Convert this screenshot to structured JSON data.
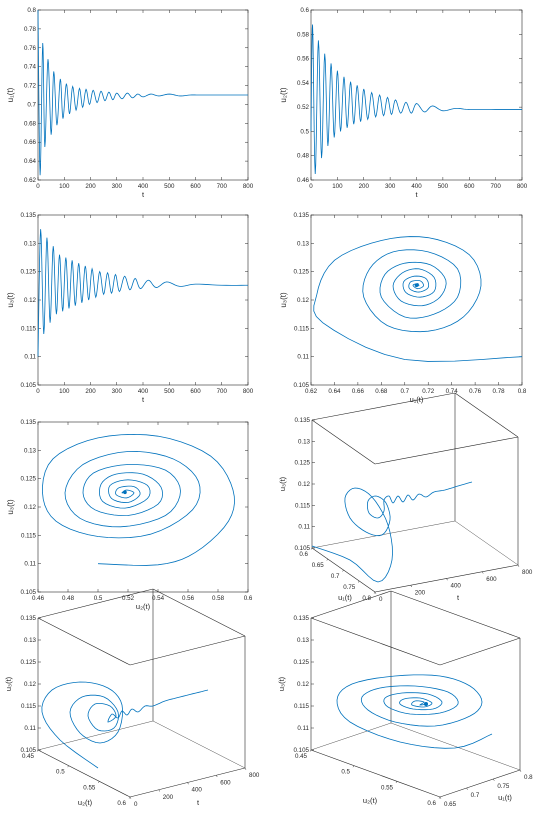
{
  "colors": {
    "line": "#0072BD",
    "axis": "#262626",
    "box": "#262626",
    "grid3d": "#d9d9d9"
  },
  "chart_data": [
    {
      "type": "line",
      "xlabel": "t",
      "ylabel": "u₁(t)",
      "xlim": [
        0,
        800
      ],
      "ylim": [
        0.62,
        0.8
      ],
      "xticks": [
        "0",
        "100",
        "200",
        "300",
        "400",
        "500",
        "600",
        "700",
        "800"
      ],
      "yticks": [
        "0.62",
        "0.64",
        "0.66",
        "0.68",
        "0.7",
        "0.72",
        "0.74",
        "0.76",
        "0.78",
        "0.8"
      ],
      "series": [
        {
          "x": [
            0,
            8,
            18,
            26,
            38,
            50,
            60,
            72,
            85,
            95,
            108,
            120,
            132,
            145,
            158,
            170,
            183,
            196,
            210,
            225,
            240,
            255,
            270,
            285,
            300,
            320,
            340,
            360,
            380,
            400,
            430,
            460,
            500,
            540,
            580,
            620,
            700,
            800
          ],
          "values": [
            0.8,
            0.625,
            0.765,
            0.655,
            0.748,
            0.668,
            0.735,
            0.678,
            0.727,
            0.685,
            0.722,
            0.69,
            0.719,
            0.694,
            0.717,
            0.697,
            0.716,
            0.7,
            0.715,
            0.702,
            0.714,
            0.704,
            0.713,
            0.705,
            0.712,
            0.706,
            0.712,
            0.707,
            0.711,
            0.708,
            0.711,
            0.709,
            0.711,
            0.709,
            0.71,
            0.71,
            0.71,
            0.71
          ]
        }
      ]
    },
    {
      "type": "line",
      "xlabel": "t",
      "ylabel": "u₂(t)",
      "xlim": [
        0,
        800
      ],
      "ylim": [
        0.46,
        0.6
      ],
      "xticks": [
        "0",
        "100",
        "200",
        "300",
        "400",
        "500",
        "600",
        "700",
        "800"
      ],
      "yticks": [
        "0.46",
        "0.48",
        "0.5",
        "0.52",
        "0.54",
        "0.56",
        "0.58",
        "0.6"
      ],
      "series": [
        {
          "x": [
            0,
            6,
            16,
            28,
            40,
            52,
            64,
            76,
            88,
            100,
            112,
            125,
            137,
            150,
            162,
            175,
            188,
            200,
            215,
            230,
            245,
            260,
            275,
            290,
            305,
            320,
            340,
            360,
            380,
            400,
            430,
            460,
            500,
            550,
            600,
            700,
            800
          ],
          "values": [
            0.5,
            0.588,
            0.465,
            0.575,
            0.478,
            0.564,
            0.488,
            0.556,
            0.495,
            0.55,
            0.5,
            0.545,
            0.503,
            0.541,
            0.506,
            0.538,
            0.508,
            0.535,
            0.51,
            0.532,
            0.512,
            0.53,
            0.513,
            0.528,
            0.514,
            0.526,
            0.515,
            0.524,
            0.515,
            0.523,
            0.516,
            0.521,
            0.517,
            0.519,
            0.518,
            0.518,
            0.518
          ]
        }
      ]
    },
    {
      "type": "line",
      "xlabel": "t",
      "ylabel": "u₃(t)",
      "xlim": [
        0,
        800
      ],
      "ylim": [
        0.105,
        0.135
      ],
      "xticks": [
        "0",
        "100",
        "200",
        "300",
        "400",
        "500",
        "600",
        "700",
        "800"
      ],
      "yticks": [
        "0.105",
        "0.11",
        "0.115",
        "0.12",
        "0.125",
        "0.13",
        "0.135"
      ],
      "series": [
        {
          "x": [
            0,
            10,
            22,
            34,
            46,
            58,
            70,
            82,
            94,
            106,
            118,
            130,
            142,
            155,
            167,
            180,
            193,
            206,
            220,
            235,
            250,
            265,
            280,
            295,
            310,
            330,
            350,
            370,
            390,
            420,
            450,
            490,
            540,
            600,
            700,
            800
          ],
          "values": [
            0.11,
            0.1325,
            0.114,
            0.131,
            0.116,
            0.1295,
            0.1175,
            0.128,
            0.118,
            0.1275,
            0.1185,
            0.127,
            0.119,
            0.1265,
            0.1195,
            0.126,
            0.12,
            0.1255,
            0.1205,
            0.125,
            0.121,
            0.1248,
            0.1212,
            0.1245,
            0.1215,
            0.1242,
            0.1218,
            0.1238,
            0.122,
            0.1235,
            0.1222,
            0.1232,
            0.1224,
            0.1228,
            0.1226,
            0.1226
          ]
        }
      ]
    },
    {
      "type": "line",
      "xlabel": "u₁(t)",
      "ylabel": "u₃(t)",
      "xlim": [
        0.62,
        0.8
      ],
      "ylim": [
        0.105,
        0.135
      ],
      "xticks": [
        "0.62",
        "0.64",
        "0.66",
        "0.68",
        "0.7",
        "0.72",
        "0.74",
        "0.76",
        "0.78",
        "0.8"
      ],
      "yticks": [
        "0.105",
        "0.11",
        "0.115",
        "0.12",
        "0.125",
        "0.13",
        "0.135"
      ],
      "spiral": {
        "center": [
          0.71,
          0.1226
        ],
        "start": [
          0.8,
          0.11
        ],
        "points": [
          [
            0.8,
            0.11
          ],
          [
            0.7,
            0.1095
          ],
          [
            0.63,
            0.116
          ],
          [
            0.625,
            0.121
          ],
          [
            0.64,
            0.127
          ],
          [
            0.68,
            0.1305
          ],
          [
            0.72,
            0.131
          ],
          [
            0.755,
            0.128
          ],
          [
            0.765,
            0.1225
          ],
          [
            0.75,
            0.117
          ],
          [
            0.72,
            0.1145
          ],
          [
            0.685,
            0.1155
          ],
          [
            0.665,
            0.1205
          ],
          [
            0.67,
            0.1255
          ],
          [
            0.69,
            0.1285
          ],
          [
            0.72,
            0.1285
          ],
          [
            0.745,
            0.1255
          ],
          [
            0.745,
            0.1205
          ],
          [
            0.725,
            0.1175
          ],
          [
            0.7,
            0.117
          ],
          [
            0.68,
            0.1205
          ],
          [
            0.683,
            0.1245
          ],
          [
            0.7,
            0.1265
          ],
          [
            0.722,
            0.1262
          ],
          [
            0.735,
            0.1235
          ],
          [
            0.73,
            0.1205
          ],
          [
            0.715,
            0.119
          ],
          [
            0.697,
            0.1198
          ],
          [
            0.69,
            0.1225
          ],
          [
            0.698,
            0.1248
          ],
          [
            0.712,
            0.1255
          ],
          [
            0.725,
            0.124
          ],
          [
            0.725,
            0.1215
          ],
          [
            0.713,
            0.1205
          ],
          [
            0.701,
            0.1213
          ],
          [
            0.699,
            0.1232
          ],
          [
            0.708,
            0.1242
          ],
          [
            0.718,
            0.1238
          ],
          [
            0.72,
            0.1222
          ],
          [
            0.712,
            0.1214
          ],
          [
            0.704,
            0.122
          ],
          [
            0.705,
            0.1232
          ],
          [
            0.713,
            0.1234
          ],
          [
            0.716,
            0.1225
          ],
          [
            0.711,
            0.122
          ],
          [
            0.707,
            0.1226
          ],
          [
            0.711,
            0.1229
          ],
          [
            0.712,
            0.1225
          ],
          [
            0.71,
            0.1226
          ]
        ]
      }
    },
    {
      "type": "line",
      "xlabel": "u₂(t)",
      "ylabel": "u₃(t)",
      "xlim": [
        0.46,
        0.6
      ],
      "ylim": [
        0.105,
        0.135
      ],
      "xticks": [
        "0.46",
        "0.48",
        "0.5",
        "0.52",
        "0.54",
        "0.56",
        "0.58",
        "0.6"
      ],
      "yticks": [
        "0.105",
        "0.11",
        "0.115",
        "0.12",
        "0.125",
        "0.13",
        "0.135"
      ],
      "spiral": {
        "points": [
          [
            0.5,
            0.11
          ],
          [
            0.54,
            0.1098
          ],
          [
            0.565,
            0.112
          ],
          [
            0.587,
            0.1175
          ],
          [
            0.59,
            0.123
          ],
          [
            0.575,
            0.129
          ],
          [
            0.54,
            0.1325
          ],
          [
            0.5,
            0.1322
          ],
          [
            0.47,
            0.1285
          ],
          [
            0.463,
            0.1225
          ],
          [
            0.472,
            0.1175
          ],
          [
            0.5,
            0.1148
          ],
          [
            0.535,
            0.1152
          ],
          [
            0.563,
            0.1195
          ],
          [
            0.567,
            0.1245
          ],
          [
            0.55,
            0.1285
          ],
          [
            0.52,
            0.1298
          ],
          [
            0.49,
            0.1275
          ],
          [
            0.478,
            0.1225
          ],
          [
            0.488,
            0.118
          ],
          [
            0.515,
            0.1165
          ],
          [
            0.545,
            0.1185
          ],
          [
            0.555,
            0.1228
          ],
          [
            0.545,
            0.1265
          ],
          [
            0.52,
            0.1275
          ],
          [
            0.497,
            0.126
          ],
          [
            0.49,
            0.1225
          ],
          [
            0.498,
            0.1195
          ],
          [
            0.52,
            0.1185
          ],
          [
            0.54,
            0.1205
          ],
          [
            0.542,
            0.1235
          ],
          [
            0.53,
            0.1258
          ],
          [
            0.512,
            0.1258
          ],
          [
            0.502,
            0.124
          ],
          [
            0.503,
            0.121
          ],
          [
            0.518,
            0.1198
          ],
          [
            0.533,
            0.1215
          ],
          [
            0.533,
            0.1238
          ],
          [
            0.52,
            0.1248
          ],
          [
            0.508,
            0.1238
          ],
          [
            0.509,
            0.1215
          ],
          [
            0.52,
            0.1208
          ],
          [
            0.528,
            0.1222
          ],
          [
            0.524,
            0.1236
          ],
          [
            0.514,
            0.1234
          ],
          [
            0.512,
            0.1222
          ],
          [
            0.519,
            0.1216
          ],
          [
            0.524,
            0.1225
          ],
          [
            0.519,
            0.123
          ],
          [
            0.516,
            0.1225
          ],
          [
            0.518,
            0.1226
          ]
        ]
      }
    },
    {
      "type": "line3d",
      "axes": [
        "u₁(t)",
        "t",
        "u₃(t)"
      ],
      "xticks": [
        "0.6",
        "0.65",
        "0.7",
        "0.75",
        "0.8"
      ],
      "tticks": [
        "0",
        "200",
        "400",
        "600",
        "800"
      ],
      "zticks": [
        "0.105",
        "0.11",
        "0.115",
        "0.12",
        "0.125",
        "0.13",
        "0.135"
      ]
    },
    {
      "type": "line3d",
      "axes": [
        "u₂(t)",
        "t",
        "u₃(t)"
      ],
      "xticks": [
        "0.45",
        "0.5",
        "0.55",
        "0.6"
      ],
      "tticks": [
        "0",
        "200",
        "400",
        "600",
        "800"
      ],
      "zticks": [
        "0.105",
        "0.11",
        "0.115",
        "0.12",
        "0.125",
        "0.13",
        "0.135"
      ]
    },
    {
      "type": "line3d",
      "axes": [
        "u₂(t)",
        "u₁(t)",
        "u₃(t)"
      ],
      "xticks": [
        "0.45",
        "0.5",
        "0.55",
        "0.6"
      ],
      "yticks": [
        "0.65",
        "0.7",
        "0.75",
        "0.8"
      ],
      "zticks": [
        "0.105",
        "0.11",
        "0.115",
        "0.12",
        "0.125",
        "0.13",
        "0.135"
      ]
    }
  ]
}
